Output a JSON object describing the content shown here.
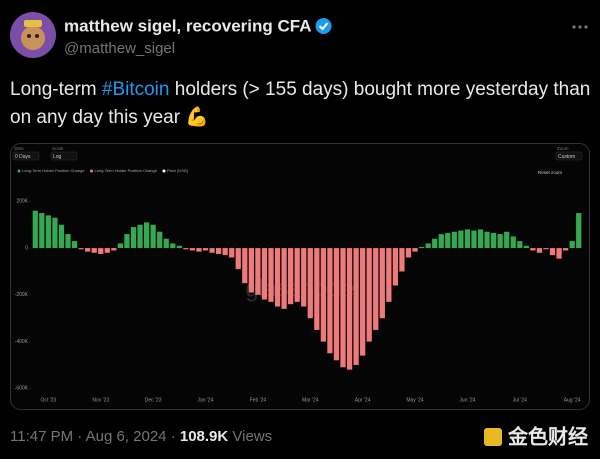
{
  "tweet": {
    "name": "matthew sigel, recovering CFA",
    "handle": "@matthew_sigel",
    "text_parts": [
      "Long-term ",
      "#Bitcoin",
      " holders (> 155 days) bought more yesterday than on any day this year ",
      "💪"
    ],
    "time": "11:47 PM",
    "separator": "·",
    "date": "Aug 6, 2024",
    "views": "108.9K",
    "views_label": "Views",
    "source_watermark": "金色财经"
  },
  "chart_data": {
    "type": "bar",
    "controls": [
      {
        "label": "SMA",
        "value": "0 Days"
      },
      {
        "label": "Scale",
        "value": "Log"
      },
      {
        "label": "Zoom",
        "value": "Custom"
      }
    ],
    "reset": "Reset zoom",
    "watermark": "glassnode",
    "legend": [
      {
        "name": "Long-Term Holder Position Change",
        "color": "#35a852"
      },
      {
        "name": "Long-Term Holder Position Change",
        "color": "#f07a7a"
      },
      {
        "name": "Price [USD]",
        "color": "#ffffff"
      }
    ],
    "categories": [
      null,
      null,
      "Oct '23",
      null,
      null,
      null,
      null,
      null,
      null,
      null,
      "Nov '23",
      null,
      null,
      null,
      null,
      null,
      null,
      null,
      "Dec '23",
      null,
      null,
      null,
      null,
      null,
      null,
      null,
      "Jan '24",
      null,
      null,
      null,
      null,
      null,
      null,
      null,
      "Feb '24",
      null,
      null,
      null,
      null,
      null,
      null,
      null,
      "Mar '24",
      null,
      null,
      null,
      null,
      null,
      null,
      null,
      "Apr '24",
      null,
      null,
      null,
      null,
      null,
      null,
      null,
      "May '24",
      null,
      null,
      null,
      null,
      null,
      null,
      null,
      "Jun '24",
      null,
      null,
      null,
      null,
      null,
      null,
      null,
      "Jul '24",
      null,
      null,
      null,
      null,
      null,
      null,
      null,
      "Aug '24",
      null
    ],
    "values": [
      160000,
      150000,
      140000,
      130000,
      100000,
      60000,
      30000,
      -5000,
      -15000,
      -20000,
      -25000,
      -20000,
      -10000,
      20000,
      60000,
      90000,
      100000,
      110000,
      100000,
      70000,
      40000,
      20000,
      10000,
      -5000,
      -10000,
      -15000,
      -10000,
      -20000,
      -25000,
      -30000,
      -40000,
      -90000,
      -150000,
      -190000,
      -200000,
      -220000,
      -230000,
      -250000,
      -260000,
      -240000,
      -230000,
      -250000,
      -300000,
      -350000,
      -400000,
      -450000,
      -480000,
      -510000,
      -520000,
      -500000,
      -460000,
      -400000,
      -350000,
      -300000,
      -230000,
      -160000,
      -100000,
      -40000,
      -15000,
      5000,
      20000,
      40000,
      60000,
      65000,
      70000,
      75000,
      80000,
      75000,
      80000,
      70000,
      65000,
      60000,
      70000,
      50000,
      30000,
      10000,
      -10000,
      -20000,
      -5000,
      -30000,
      -45000,
      -10000,
      30000,
      150000
    ],
    "ylim": [
      -620000,
      270000
    ],
    "yticks": [
      {
        "value": 200000,
        "label": "200K"
      },
      0,
      {
        "value": -200000,
        "label": "-200K"
      },
      {
        "value": -400000,
        "label": "-400K"
      },
      {
        "value": -600000,
        "label": "-600K"
      }
    ],
    "grid": false
  }
}
